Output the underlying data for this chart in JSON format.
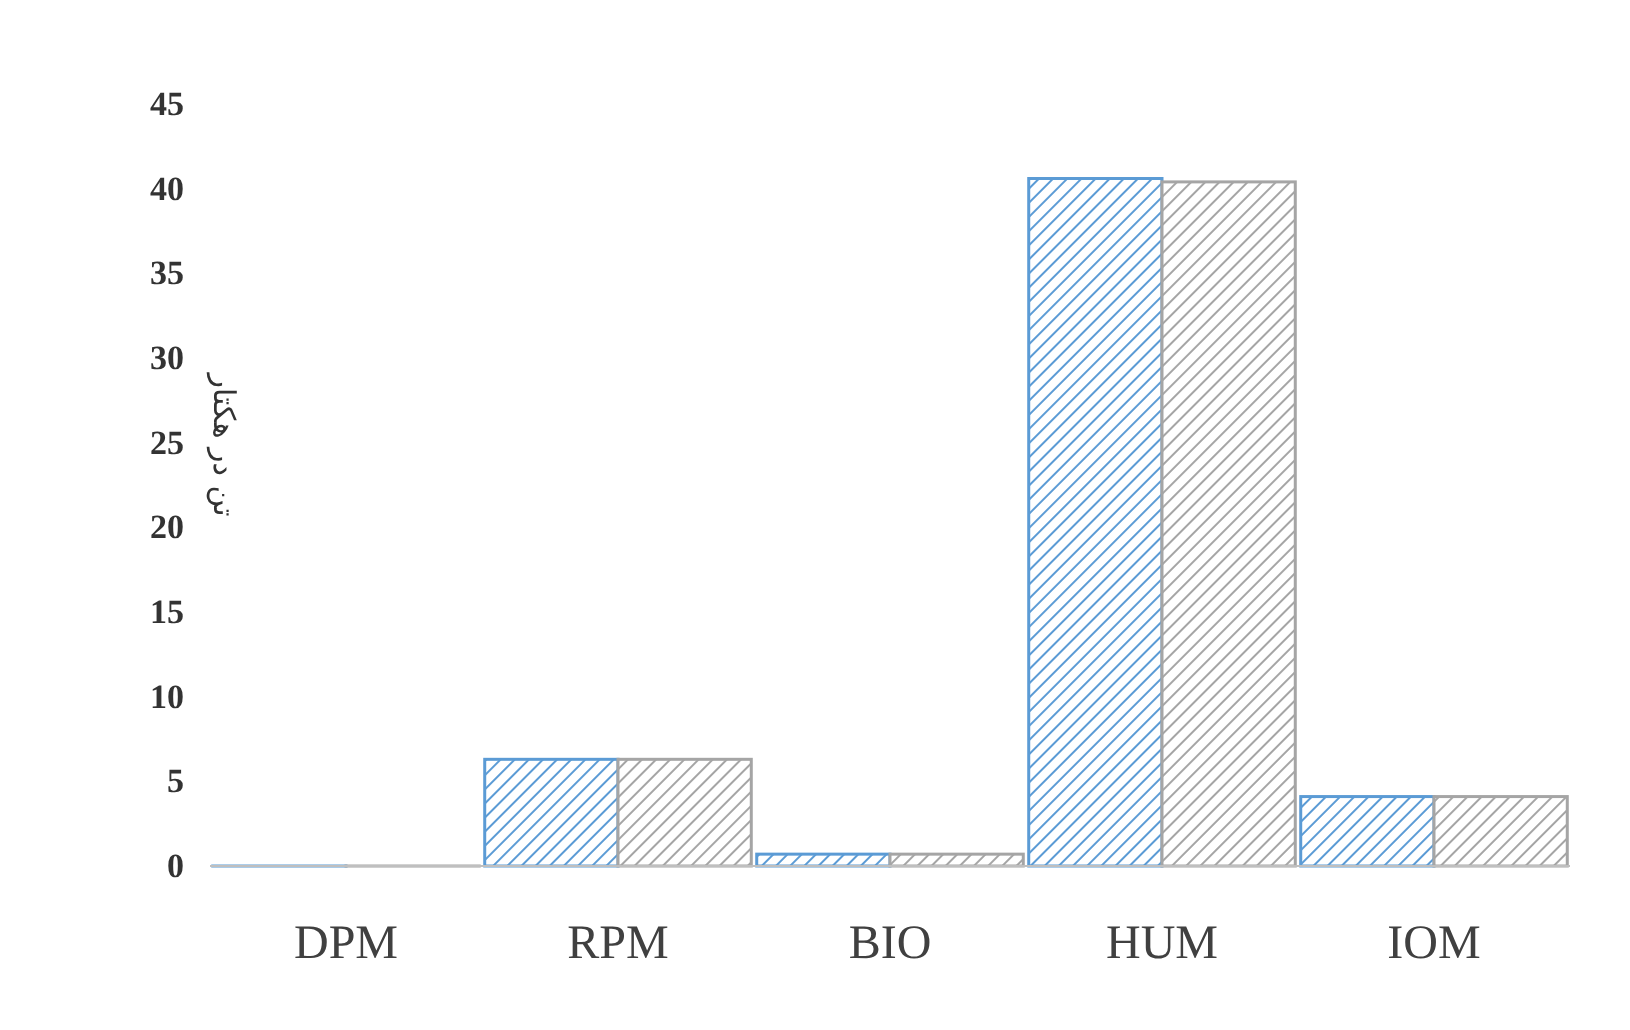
{
  "chart_data": {
    "type": "bar",
    "ylabel": "تن در هکتار",
    "categories": [
      "DPM",
      "RPM",
      "BIO",
      "HUM",
      "IOM"
    ],
    "series": [
      {
        "color": "#5b9bd5",
        "values": [
          0,
          6.3,
          0.7,
          40.6,
          4.1
        ]
      },
      {
        "color": "#a5a5a5",
        "values": [
          0,
          6.3,
          0.7,
          40.4,
          4.1
        ]
      }
    ],
    "ylim": [
      0,
      45
    ],
    "yticks": [
      0,
      5,
      10,
      15,
      20,
      25,
      30,
      35,
      40,
      45
    ],
    "grid": false
  }
}
